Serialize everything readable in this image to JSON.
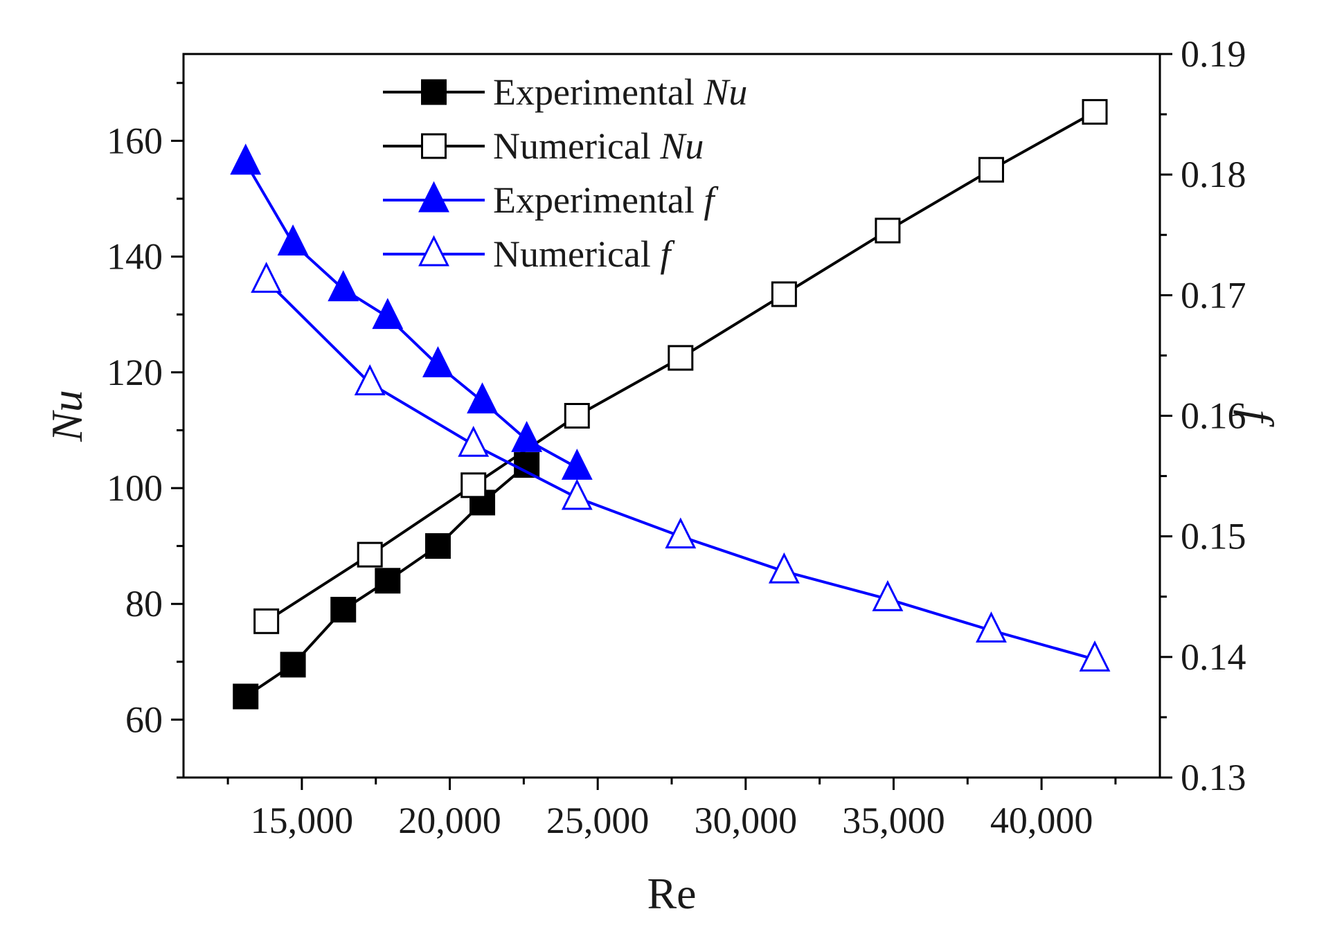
{
  "chart_data": {
    "type": "line",
    "title": "",
    "xlabel": "Re",
    "ylabel_left": "Nu",
    "ylabel_right": "f",
    "xlim": [
      11000,
      44000
    ],
    "ylim_left": [
      50,
      175
    ],
    "ylim_right": [
      0.13,
      0.19
    ],
    "x_ticks": [
      15000,
      20000,
      25000,
      30000,
      35000,
      40000
    ],
    "x_tick_labels": [
      "15,000",
      "20,000",
      "25,000",
      "30,000",
      "35,000",
      "40,000"
    ],
    "y_left_ticks": [
      60,
      80,
      100,
      120,
      140,
      160
    ],
    "y_left_tick_labels": [
      "60",
      "80",
      "100",
      "120",
      "140",
      "160"
    ],
    "y_right_ticks": [
      0.13,
      0.14,
      0.15,
      0.16,
      0.17,
      0.18,
      0.19
    ],
    "y_right_tick_labels": [
      "0.13",
      "0.14",
      "0.15",
      "0.16",
      "0.17",
      "0.18",
      "0.19"
    ],
    "grid": false,
    "legend_position": "top-left",
    "series": [
      {
        "name": "Experimental Nu",
        "legend_prefix": "Experimental ",
        "legend_var": "Nu",
        "axis": "left",
        "color": "#000000",
        "marker": "square-filled",
        "x": [
          13100,
          14700,
          16400,
          17900,
          19600,
          21100,
          22600
        ],
        "y": [
          64,
          69.5,
          79,
          84,
          90,
          97.5,
          104
        ]
      },
      {
        "name": "Numerical Nu",
        "legend_prefix": "Numerical ",
        "legend_var": "Nu",
        "axis": "left",
        "color": "#000000",
        "marker": "square-open",
        "x": [
          13800,
          17300,
          20800,
          24300,
          27800,
          31300,
          34800,
          38300,
          41800
        ],
        "y": [
          77,
          88.5,
          100.5,
          112.5,
          122.5,
          133.5,
          144.5,
          155,
          165
        ]
      },
      {
        "name": "Experimental f",
        "legend_prefix": "Experimental ",
        "legend_var": "f",
        "axis": "right",
        "color": "#0000ff",
        "marker": "triangle-filled",
        "x": [
          13100,
          14700,
          16400,
          17900,
          19600,
          21100,
          22600,
          24300
        ],
        "y": [
          0.181,
          0.1743,
          0.1705,
          0.1682,
          0.1642,
          0.1612,
          0.158,
          0.1557
        ]
      },
      {
        "name": "Numerical f",
        "legend_prefix": "Numerical ",
        "legend_var": "f",
        "axis": "right",
        "color": "#0000ff",
        "marker": "triangle-open",
        "x": [
          13800,
          17300,
          20800,
          24300,
          27800,
          31300,
          34800,
          38300,
          41800
        ],
        "y": [
          0.1712,
          0.1627,
          0.1576,
          0.1532,
          0.15,
          0.1471,
          0.1448,
          0.1422,
          0.1398
        ]
      }
    ]
  }
}
